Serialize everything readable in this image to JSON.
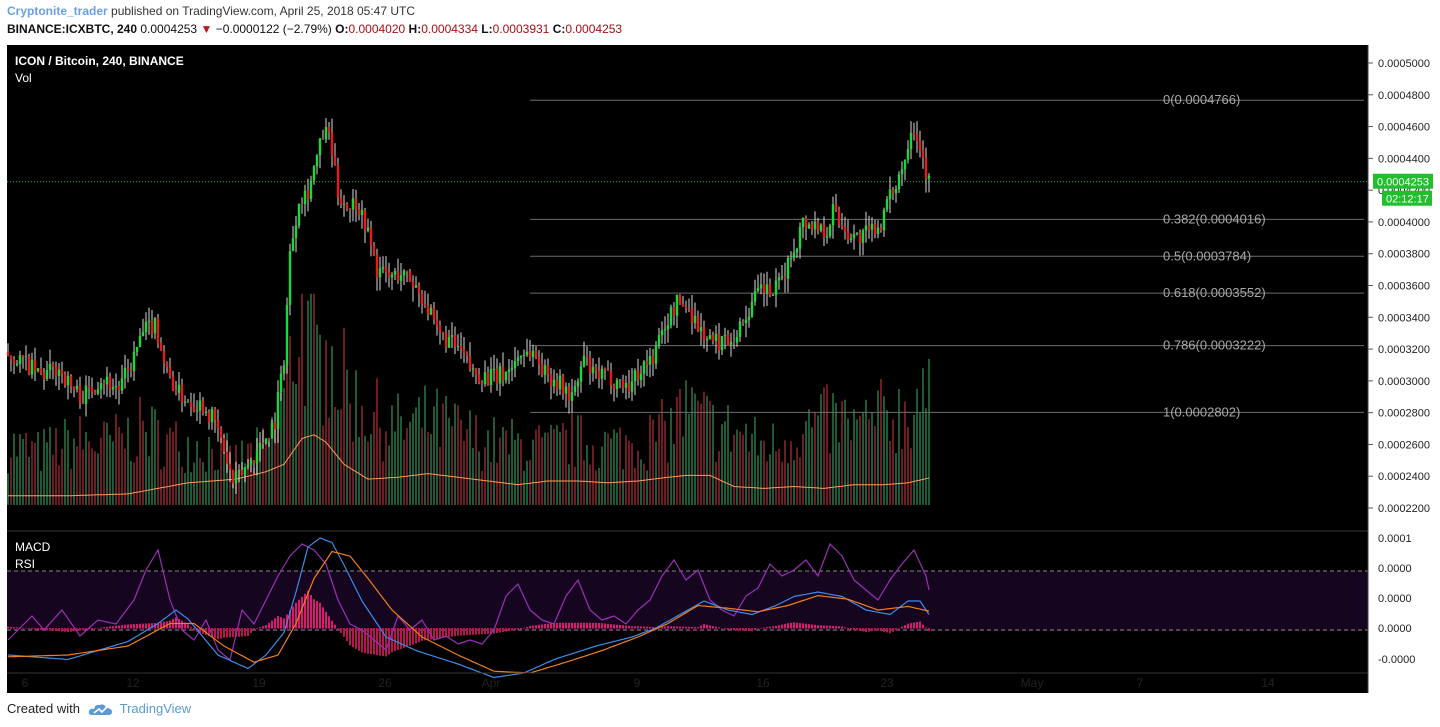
{
  "header": {
    "author": "Cryptonite_trader",
    "published": "published on TradingView.com, April 25, 2018 05:47 UTC",
    "symbol": "BINANCE:ICXBTC, 240",
    "last": "0.0004253",
    "change": "−0.0000122 (−2.79%)",
    "open_label": "O:",
    "open": "0.0004020",
    "high_label": "H:",
    "high": "0.0004334",
    "low_label": "L:",
    "low": "0.0003931",
    "close_label": "C:",
    "close": "0.0004253"
  },
  "footer": {
    "created_with": "Created with",
    "brand": "TradingView"
  },
  "colors": {
    "up": "#19d83a",
    "down": "#e61b1b",
    "fib": "#6d6d6d",
    "price_line": "#1fc02c",
    "ma": "#ff9b5a",
    "macd": "#3d8be8",
    "signal": "#f07d1a",
    "rsi": "#9a2fb8"
  },
  "chart_data": {
    "type": "candlestick",
    "title": "ICON / Bitcoin, 240, BINANCE",
    "volume_label": "Vol",
    "ylim": [
      0.00021,
      0.00051
    ],
    "y_ticks": [
      "0.0005000",
      "0.0004800",
      "0.0004600",
      "0.0004400",
      "0.0004200",
      "0.0004000",
      "0.0003800",
      "0.0003600",
      "0.0003400",
      "0.0003200",
      "0.0003000",
      "0.0002800",
      "0.0002600",
      "0.0002400",
      "0.0002200"
    ],
    "x_ticks": [
      "6",
      "12",
      "19",
      "26",
      "Apr",
      "9",
      "16",
      "23",
      "May",
      "7",
      "14"
    ],
    "last_price": "0.0004253",
    "countdown": "02:12:17",
    "fib_levels": [
      {
        "label": "0(0.0004766)",
        "value": 0.0004766
      },
      {
        "label": "0.382(0.0004016)",
        "value": 0.0004016
      },
      {
        "label": "0.5(0.0003784)",
        "value": 0.0003784
      },
      {
        "label": "0.618(0.0003552)",
        "value": 0.0003552
      },
      {
        "label": "0.786(0.0003222)",
        "value": 0.0003222
      },
      {
        "label": "1(0.0002802)",
        "value": 0.0002802
      }
    ],
    "price_path": [
      [
        0,
        0.000318
      ],
      [
        6,
        0.000312
      ],
      [
        12,
        0.000303
      ],
      [
        18,
        0.000308
      ],
      [
        22,
        0.000296
      ],
      [
        26,
        0.00029
      ],
      [
        32,
        0.000302
      ],
      [
        38,
        0.000295
      ],
      [
        42,
        0.00031
      ],
      [
        46,
        0.00033
      ],
      [
        50,
        0.000337
      ],
      [
        54,
        0.000305
      ],
      [
        58,
        0.000292
      ],
      [
        62,
        0.000287
      ],
      [
        66,
        0.000285
      ],
      [
        70,
        0.000274
      ],
      [
        73,
        0.000256
      ],
      [
        76,
        0.000235
      ],
      [
        78,
        0.00024
      ],
      [
        82,
        0.00025
      ],
      [
        86,
        0.000262
      ],
      [
        90,
        0.000275
      ],
      [
        93,
        0.000315
      ],
      [
        95,
        0.00038
      ],
      [
        98,
        0.000415
      ],
      [
        101,
        0.00042
      ],
      [
        104,
        0.00044
      ],
      [
        106,
        0.000455
      ],
      [
        108,
        0.000455
      ],
      [
        111,
        0.000418
      ],
      [
        114,
        0.00041
      ],
      [
        117,
        0.000413
      ],
      [
        120,
        0.0004
      ],
      [
        124,
        0.00037
      ],
      [
        128,
        0.000365
      ],
      [
        132,
        0.000368
      ],
      [
        136,
        0.000362
      ],
      [
        140,
        0.00035
      ],
      [
        144,
        0.00033
      ],
      [
        148,
        0.000325
      ],
      [
        152,
        0.000318
      ],
      [
        156,
        0.000305
      ],
      [
        160,
        0.000303
      ],
      [
        164,
        0.000302
      ],
      [
        168,
        0.000307
      ],
      [
        172,
        0.000318
      ],
      [
        176,
        0.000318
      ],
      [
        180,
        0.000305
      ],
      [
        184,
        0.0003
      ],
      [
        188,
        0.000291
      ],
      [
        190,
        0.000292
      ],
      [
        193,
        0.000315
      ],
      [
        196,
        0.000303
      ],
      [
        200,
        0.000303
      ],
      [
        204,
        0.0003
      ],
      [
        208,
        0.000297
      ],
      [
        212,
        0.000308
      ],
      [
        216,
        0.000315
      ],
      [
        220,
        0.000335
      ],
      [
        224,
        0.000349
      ],
      [
        228,
        0.000346
      ],
      [
        232,
        0.000331
      ],
      [
        236,
        0.000324
      ],
      [
        240,
        0.000326
      ],
      [
        244,
        0.00033
      ],
      [
        248,
        0.000345
      ],
      [
        252,
        0.000358
      ],
      [
        256,
        0.000355
      ],
      [
        258,
        0.00036
      ],
      [
        262,
        0.000378
      ],
      [
        266,
        0.0004
      ],
      [
        270,
        0.000398
      ],
      [
        274,
        0.000395
      ],
      [
        276,
        0.000408
      ],
      [
        280,
        0.000395
      ],
      [
        284,
        0.00039
      ],
      [
        288,
        0.000393
      ],
      [
        292,
        0.0004
      ],
      [
        296,
        0.00042
      ],
      [
        300,
        0.00044
      ],
      [
        302,
        0.000462
      ],
      [
        304,
        0.000455
      ],
      [
        306,
        0.00044
      ],
      [
        308,
        0.000425
      ]
    ],
    "volume_path": [
      [
        0,
        0.3
      ],
      [
        10,
        0.26
      ],
      [
        18,
        0.3
      ],
      [
        24,
        0.32
      ],
      [
        32,
        0.3
      ],
      [
        40,
        0.34
      ],
      [
        46,
        0.38
      ],
      [
        52,
        0.32
      ],
      [
        58,
        0.3
      ],
      [
        64,
        0.3
      ],
      [
        70,
        0.27
      ],
      [
        76,
        0.22
      ],
      [
        80,
        0.25
      ],
      [
        86,
        0.28
      ],
      [
        90,
        0.42
      ],
      [
        94,
        0.68
      ],
      [
        97,
        0.92
      ],
      [
        100,
        0.78
      ],
      [
        104,
        0.7
      ],
      [
        108,
        0.72
      ],
      [
        112,
        0.6
      ],
      [
        116,
        0.52
      ],
      [
        120,
        0.46
      ],
      [
        126,
        0.4
      ],
      [
        132,
        0.38
      ],
      [
        140,
        0.42
      ],
      [
        148,
        0.38
      ],
      [
        156,
        0.33
      ],
      [
        164,
        0.3
      ],
      [
        172,
        0.3
      ],
      [
        180,
        0.28
      ],
      [
        188,
        0.32
      ],
      [
        196,
        0.3
      ],
      [
        204,
        0.3
      ],
      [
        212,
        0.32
      ],
      [
        218,
        0.36
      ],
      [
        222,
        0.4
      ],
      [
        226,
        0.46
      ],
      [
        230,
        0.44
      ],
      [
        236,
        0.38
      ],
      [
        244,
        0.36
      ],
      [
        250,
        0.3
      ],
      [
        256,
        0.3
      ],
      [
        262,
        0.36
      ],
      [
        270,
        0.4
      ],
      [
        276,
        0.42
      ],
      [
        284,
        0.38
      ],
      [
        292,
        0.44
      ],
      [
        298,
        0.46
      ],
      [
        302,
        0.48
      ],
      [
        306,
        0.5
      ]
    ],
    "volume_ma_path": [
      [
        0,
        0.05
      ],
      [
        20,
        0.05
      ],
      [
        40,
        0.06
      ],
      [
        60,
        0.12
      ],
      [
        76,
        0.14
      ],
      [
        86,
        0.18
      ],
      [
        92,
        0.22
      ],
      [
        98,
        0.36
      ],
      [
        102,
        0.38
      ],
      [
        106,
        0.34
      ],
      [
        112,
        0.22
      ],
      [
        120,
        0.14
      ],
      [
        130,
        0.15
      ],
      [
        140,
        0.17
      ],
      [
        150,
        0.15
      ],
      [
        160,
        0.13
      ],
      [
        170,
        0.11
      ],
      [
        180,
        0.13
      ],
      [
        190,
        0.13
      ],
      [
        200,
        0.12
      ],
      [
        210,
        0.13
      ],
      [
        220,
        0.15
      ],
      [
        226,
        0.16
      ],
      [
        234,
        0.16
      ],
      [
        242,
        0.1
      ],
      [
        252,
        0.09
      ],
      [
        262,
        0.1
      ],
      [
        272,
        0.09
      ],
      [
        282,
        0.11
      ],
      [
        292,
        0.11
      ],
      [
        300,
        0.12
      ],
      [
        308,
        0.15
      ]
    ],
    "volume_spikes": [
      [
        98,
        1.0
      ],
      [
        106,
        0.78
      ],
      [
        224,
        0.55
      ],
      [
        231,
        0.48
      ],
      [
        303,
        0.55
      ]
    ],
    "indicators": {
      "macd_label": "MACD",
      "rsi_label": "RSI",
      "macd_ticks": [
        "0.0001",
        "0.0000",
        "0.0000",
        "0.0000",
        "-0.0000"
      ],
      "macd_path": [
        [
          0,
          -0.3
        ],
        [
          20,
          -0.35
        ],
        [
          40,
          -0.15
        ],
        [
          50,
          0.05
        ],
        [
          56,
          0.2
        ],
        [
          60,
          0.1
        ],
        [
          70,
          -0.3
        ],
        [
          80,
          -0.45
        ],
        [
          86,
          -0.3
        ],
        [
          92,
          -0.05
        ],
        [
          96,
          0.4
        ],
        [
          100,
          0.9
        ],
        [
          104,
          1.0
        ],
        [
          108,
          0.95
        ],
        [
          112,
          0.7
        ],
        [
          118,
          0.3
        ],
        [
          126,
          -0.1
        ],
        [
          136,
          -0.25
        ],
        [
          150,
          -0.4
        ],
        [
          162,
          -0.55
        ],
        [
          172,
          -0.5
        ],
        [
          182,
          -0.35
        ],
        [
          196,
          -0.2
        ],
        [
          208,
          -0.1
        ],
        [
          216,
          0.0
        ],
        [
          224,
          0.15
        ],
        [
          232,
          0.3
        ],
        [
          240,
          0.2
        ],
        [
          248,
          0.15
        ],
        [
          256,
          0.25
        ],
        [
          262,
          0.35
        ],
        [
          270,
          0.4
        ],
        [
          278,
          0.35
        ],
        [
          286,
          0.2
        ],
        [
          294,
          0.15
        ],
        [
          300,
          0.3
        ],
        [
          304,
          0.3
        ],
        [
          308,
          0.1
        ]
      ],
      "signal_path": [
        [
          0,
          -0.32
        ],
        [
          20,
          -0.3
        ],
        [
          40,
          -0.2
        ],
        [
          54,
          0.05
        ],
        [
          62,
          0.05
        ],
        [
          72,
          -0.2
        ],
        [
          82,
          -0.38
        ],
        [
          90,
          -0.3
        ],
        [
          96,
          0.05
        ],
        [
          102,
          0.55
        ],
        [
          108,
          0.85
        ],
        [
          114,
          0.8
        ],
        [
          120,
          0.55
        ],
        [
          128,
          0.2
        ],
        [
          138,
          -0.1
        ],
        [
          150,
          -0.3
        ],
        [
          162,
          -0.48
        ],
        [
          174,
          -0.5
        ],
        [
          186,
          -0.38
        ],
        [
          198,
          -0.25
        ],
        [
          210,
          -0.1
        ],
        [
          220,
          0.05
        ],
        [
          230,
          0.25
        ],
        [
          240,
          0.22
        ],
        [
          250,
          0.18
        ],
        [
          260,
          0.25
        ],
        [
          270,
          0.36
        ],
        [
          280,
          0.32
        ],
        [
          290,
          0.2
        ],
        [
          300,
          0.24
        ],
        [
          308,
          0.18
        ]
      ],
      "rsi_path": [
        [
          0,
          40
        ],
        [
          8,
          52
        ],
        [
          12,
          45
        ],
        [
          18,
          55
        ],
        [
          24,
          42
        ],
        [
          30,
          50
        ],
        [
          36,
          48
        ],
        [
          42,
          60
        ],
        [
          46,
          75
        ],
        [
          50,
          85
        ],
        [
          54,
          60
        ],
        [
          58,
          45
        ],
        [
          62,
          40
        ],
        [
          66,
          50
        ],
        [
          70,
          35
        ],
        [
          74,
          30
        ],
        [
          78,
          55
        ],
        [
          82,
          48
        ],
        [
          86,
          60
        ],
        [
          90,
          72
        ],
        [
          94,
          82
        ],
        [
          98,
          88
        ],
        [
          102,
          85
        ],
        [
          106,
          78
        ],
        [
          110,
          60
        ],
        [
          114,
          48
        ],
        [
          118,
          45
        ],
        [
          122,
          40
        ],
        [
          126,
          35
        ],
        [
          130,
          52
        ],
        [
          134,
          45
        ],
        [
          138,
          50
        ],
        [
          142,
          40
        ],
        [
          146,
          42
        ],
        [
          150,
          38
        ],
        [
          154,
          40
        ],
        [
          158,
          38
        ],
        [
          162,
          45
        ],
        [
          166,
          62
        ],
        [
          170,
          68
        ],
        [
          174,
          55
        ],
        [
          178,
          50
        ],
        [
          182,
          48
        ],
        [
          186,
          62
        ],
        [
          190,
          70
        ],
        [
          194,
          55
        ],
        [
          198,
          50
        ],
        [
          202,
          52
        ],
        [
          206,
          48
        ],
        [
          210,
          55
        ],
        [
          214,
          60
        ],
        [
          218,
          72
        ],
        [
          222,
          80
        ],
        [
          226,
          70
        ],
        [
          230,
          75
        ],
        [
          234,
          60
        ],
        [
          238,
          55
        ],
        [
          242,
          52
        ],
        [
          246,
          62
        ],
        [
          250,
          66
        ],
        [
          254,
          78
        ],
        [
          258,
          72
        ],
        [
          262,
          75
        ],
        [
          266,
          80
        ],
        [
          270,
          72
        ],
        [
          274,
          88
        ],
        [
          278,
          82
        ],
        [
          282,
          70
        ],
        [
          286,
          65
        ],
        [
          290,
          60
        ],
        [
          294,
          70
        ],
        [
          298,
          78
        ],
        [
          302,
          85
        ],
        [
          306,
          72
        ],
        [
          308,
          58
        ]
      ]
    }
  }
}
